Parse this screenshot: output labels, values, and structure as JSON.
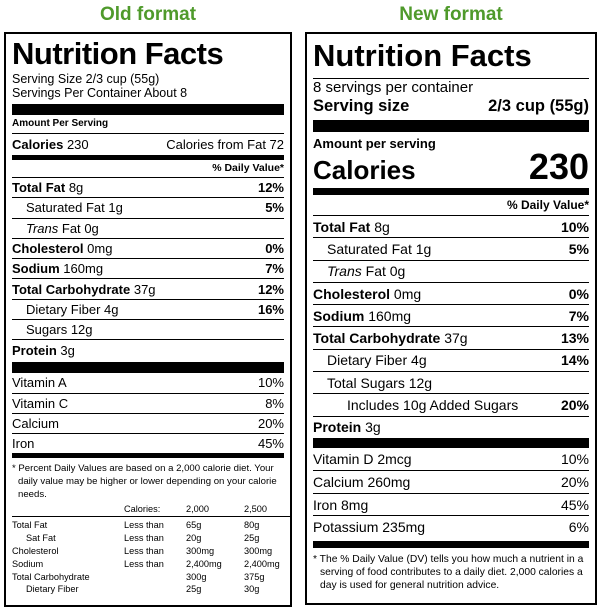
{
  "old": {
    "heading": "Old format",
    "title": "Nutrition Facts",
    "serving_size": "Serving Size 2/3 cup (55g)",
    "servings": "Servings Per Container About 8",
    "amount_per_serving": "Amount Per Serving",
    "calories_label": "Calories",
    "calories_value": "230",
    "calories_from_fat": "Calories from Fat 72",
    "dv_header": "% Daily Value*",
    "nutrients": [
      {
        "name": "Total Fat",
        "amount": "8g",
        "dv": "12%",
        "bold": true,
        "indent": 0
      },
      {
        "name": "Saturated Fat",
        "amount": "1g",
        "dv": "5%",
        "bold": false,
        "indent": 1
      },
      {
        "italic_name": "Trans",
        "name": "Fat",
        "amount": "0g",
        "bold": false,
        "indent": 1
      },
      {
        "name": "Cholesterol",
        "amount": "0mg",
        "dv": "0%",
        "bold": true,
        "indent": 0
      },
      {
        "name": "Sodium",
        "amount": "160mg",
        "dv": "7%",
        "bold": true,
        "indent": 0
      },
      {
        "name": "Total Carbohydrate",
        "amount": "37g",
        "dv": "12%",
        "bold": true,
        "indent": 0
      },
      {
        "name": "Dietary Fiber",
        "amount": "4g",
        "dv": "16%",
        "bold": false,
        "indent": 1
      },
      {
        "name": "Sugars",
        "amount": "12g",
        "bold": false,
        "indent": 1
      },
      {
        "name": "Protein",
        "amount": "3g",
        "bold": true,
        "indent": 0
      }
    ],
    "vitamins": [
      {
        "name": "Vitamin A",
        "dv": "10%"
      },
      {
        "name": "Vitamin C",
        "dv": "8%"
      },
      {
        "name": "Calcium",
        "dv": "20%"
      },
      {
        "name": "Iron",
        "dv": "45%"
      }
    ],
    "footnote": "* Percent Daily Values are based on a 2,000 calorie diet. Your daily value may be higher or lower depending on your calorie needs.",
    "table": {
      "header": {
        "label": "Calories:",
        "v1": "2,000",
        "v2": "2,500"
      },
      "rows": [
        {
          "name": "Total Fat",
          "qualifier": "Less than",
          "v1": "65g",
          "v2": "80g",
          "indent": 0
        },
        {
          "name": "Sat Fat",
          "qualifier": "Less than",
          "v1": "20g",
          "v2": "25g",
          "indent": 1
        },
        {
          "name": "Cholesterol",
          "qualifier": "Less than",
          "v1": "300mg",
          "v2": "300mg",
          "indent": 0
        },
        {
          "name": "Sodium",
          "qualifier": "Less than",
          "v1": "2,400mg",
          "v2": "2,400mg",
          "indent": 0
        },
        {
          "name": "Total Carbohydrate",
          "v1": "300g",
          "v2": "375g",
          "indent": 0
        },
        {
          "name": "Dietary Fiber",
          "v1": "25g",
          "v2": "30g",
          "indent": 1
        }
      ]
    }
  },
  "new": {
    "heading": "New format",
    "title": "Nutrition Facts",
    "servings": "8 servings per container",
    "serving_size_label": "Serving size",
    "serving_size_value": "2/3 cup (55g)",
    "amount_per_serving": "Amount per serving",
    "calories_label": "Calories",
    "calories_value": "230",
    "dv_header": "% Daily Value*",
    "nutrients": [
      {
        "name": "Total Fat",
        "amount": "8g",
        "dv": "10%",
        "bold": true,
        "indent": 0
      },
      {
        "name": "Saturated Fat",
        "amount": "1g",
        "dv": "5%",
        "bold": false,
        "indent": 1
      },
      {
        "italic_name": "Trans",
        "name": "Fat",
        "amount": "0g",
        "bold": false,
        "indent": 1
      },
      {
        "name": "Cholesterol",
        "amount": "0mg",
        "dv": "0%",
        "bold": true,
        "indent": 0
      },
      {
        "name": "Sodium",
        "amount": "160mg",
        "dv": "7%",
        "bold": true,
        "indent": 0
      },
      {
        "name": "Total Carbohydrate",
        "amount": "37g",
        "dv": "13%",
        "bold": true,
        "indent": 0
      },
      {
        "name": "Dietary Fiber",
        "amount": "4g",
        "dv": "14%",
        "bold": false,
        "indent": 1
      },
      {
        "name": "Total Sugars",
        "amount": "12g",
        "bold": false,
        "indent": 1
      },
      {
        "name": "Includes 10g Added Sugars",
        "dv": "20%",
        "bold": false,
        "indent": 2
      },
      {
        "name": "Protein",
        "amount": "3g",
        "bold": true,
        "indent": 0
      }
    ],
    "vitamins": [
      {
        "name": "Vitamin D",
        "amount": "2mcg",
        "dv": "10%"
      },
      {
        "name": "Calcium",
        "amount": "260mg",
        "dv": "20%"
      },
      {
        "name": "Iron",
        "amount": "8mg",
        "dv": "45%"
      },
      {
        "name": "Potassium",
        "amount": "235mg",
        "dv": "6%"
      }
    ],
    "footnote": "* The % Daily Value (DV) tells you how much a nutrient in a serving of food contributes to a daily diet. 2,000 calories a day is used for general nutrition advice."
  }
}
